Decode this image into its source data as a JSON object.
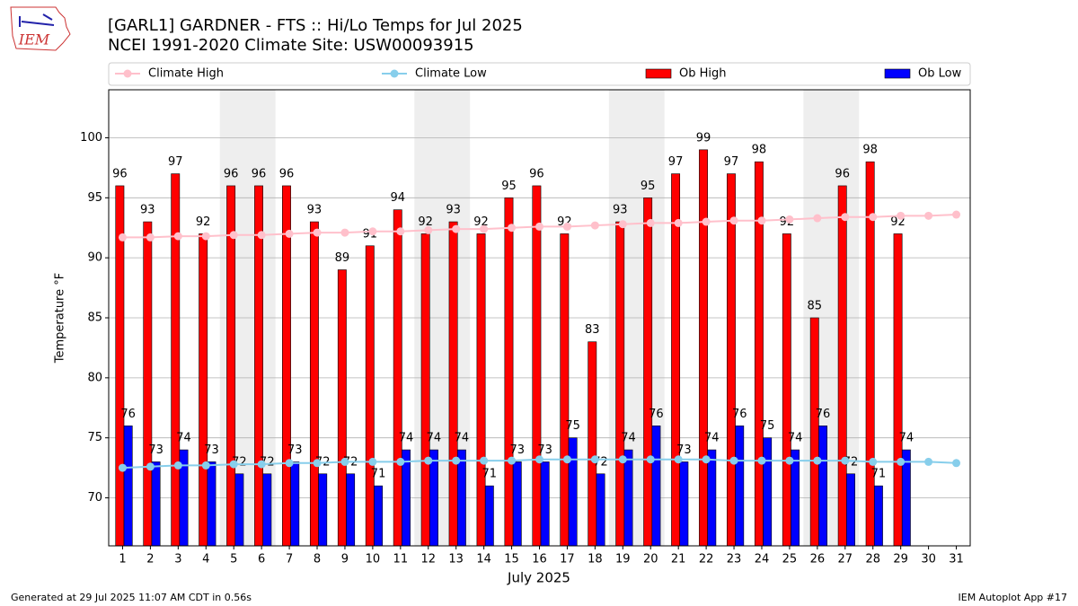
{
  "chart_data": {
    "type": "bar",
    "logo_text": "IEM",
    "title": "[GARL1] GARDNER - FTS :: Hi/Lo Temps for Jul 2025",
    "subtitle": "NCEI 1991-2020 Climate Site: USW00093915",
    "xlabel": "July 2025",
    "ylabel": "Temperature °F",
    "footer_left": "Generated at 29 Jul 2025 11:07 AM CDT in 0.56s",
    "footer_right": "IEM Autoplot App #17",
    "x": [
      1,
      2,
      3,
      4,
      5,
      6,
      7,
      8,
      9,
      10,
      11,
      12,
      13,
      14,
      15,
      16,
      17,
      18,
      19,
      20,
      21,
      22,
      23,
      24,
      25,
      26,
      27,
      28,
      29,
      30,
      31
    ],
    "xticks": [
      1,
      2,
      3,
      4,
      5,
      6,
      7,
      8,
      9,
      10,
      11,
      12,
      13,
      14,
      15,
      16,
      17,
      18,
      19,
      20,
      21,
      22,
      23,
      24,
      25,
      26,
      27,
      28,
      29,
      30,
      31
    ],
    "xlim": [
      0.5,
      31.5
    ],
    "ylim": [
      66,
      104
    ],
    "yticks": [
      70,
      75,
      80,
      85,
      90,
      95,
      100
    ],
    "grid": true,
    "weekend_bands": [
      [
        4.5,
        6.5
      ],
      [
        11.5,
        13.5
      ],
      [
        18.5,
        20.5
      ],
      [
        25.5,
        27.5
      ]
    ],
    "series": [
      {
        "name": "Climate High",
        "type": "line",
        "color": "#ffc0cb",
        "values": [
          91.7,
          91.7,
          91.8,
          91.8,
          91.9,
          91.9,
          92.0,
          92.1,
          92.1,
          92.2,
          92.2,
          92.3,
          92.4,
          92.4,
          92.5,
          92.6,
          92.6,
          92.7,
          92.8,
          92.9,
          92.9,
          93.0,
          93.1,
          93.1,
          93.2,
          93.3,
          93.4,
          93.4,
          93.5,
          93.5,
          93.6
        ]
      },
      {
        "name": "Climate Low",
        "type": "line",
        "color": "#87ceeb",
        "values": [
          72.5,
          72.6,
          72.7,
          72.7,
          72.8,
          72.8,
          72.9,
          72.9,
          73.0,
          73.0,
          73.0,
          73.1,
          73.1,
          73.1,
          73.1,
          73.2,
          73.2,
          73.2,
          73.2,
          73.2,
          73.2,
          73.2,
          73.1,
          73.1,
          73.1,
          73.1,
          73.1,
          73.0,
          73.0,
          73.0,
          72.9
        ]
      },
      {
        "name": "Ob High",
        "type": "bar",
        "color": "#ff0000",
        "values": [
          96,
          93,
          97,
          92,
          96,
          96,
          96,
          93,
          89,
          91,
          94,
          92,
          93,
          92,
          95,
          96,
          92,
          83,
          93,
          95,
          97,
          99,
          97,
          98,
          92,
          85,
          96,
          98,
          92,
          null,
          null
        ]
      },
      {
        "name": "Ob Low",
        "type": "bar",
        "color": "#0000ff",
        "values": [
          76,
          73,
          74,
          73,
          72,
          72,
          73,
          72,
          72,
          71,
          74,
          74,
          74,
          71,
          73,
          73,
          75,
          72,
          74,
          76,
          73,
          74,
          76,
          75,
          74,
          76,
          72,
          71,
          74,
          null,
          null
        ]
      }
    ]
  }
}
